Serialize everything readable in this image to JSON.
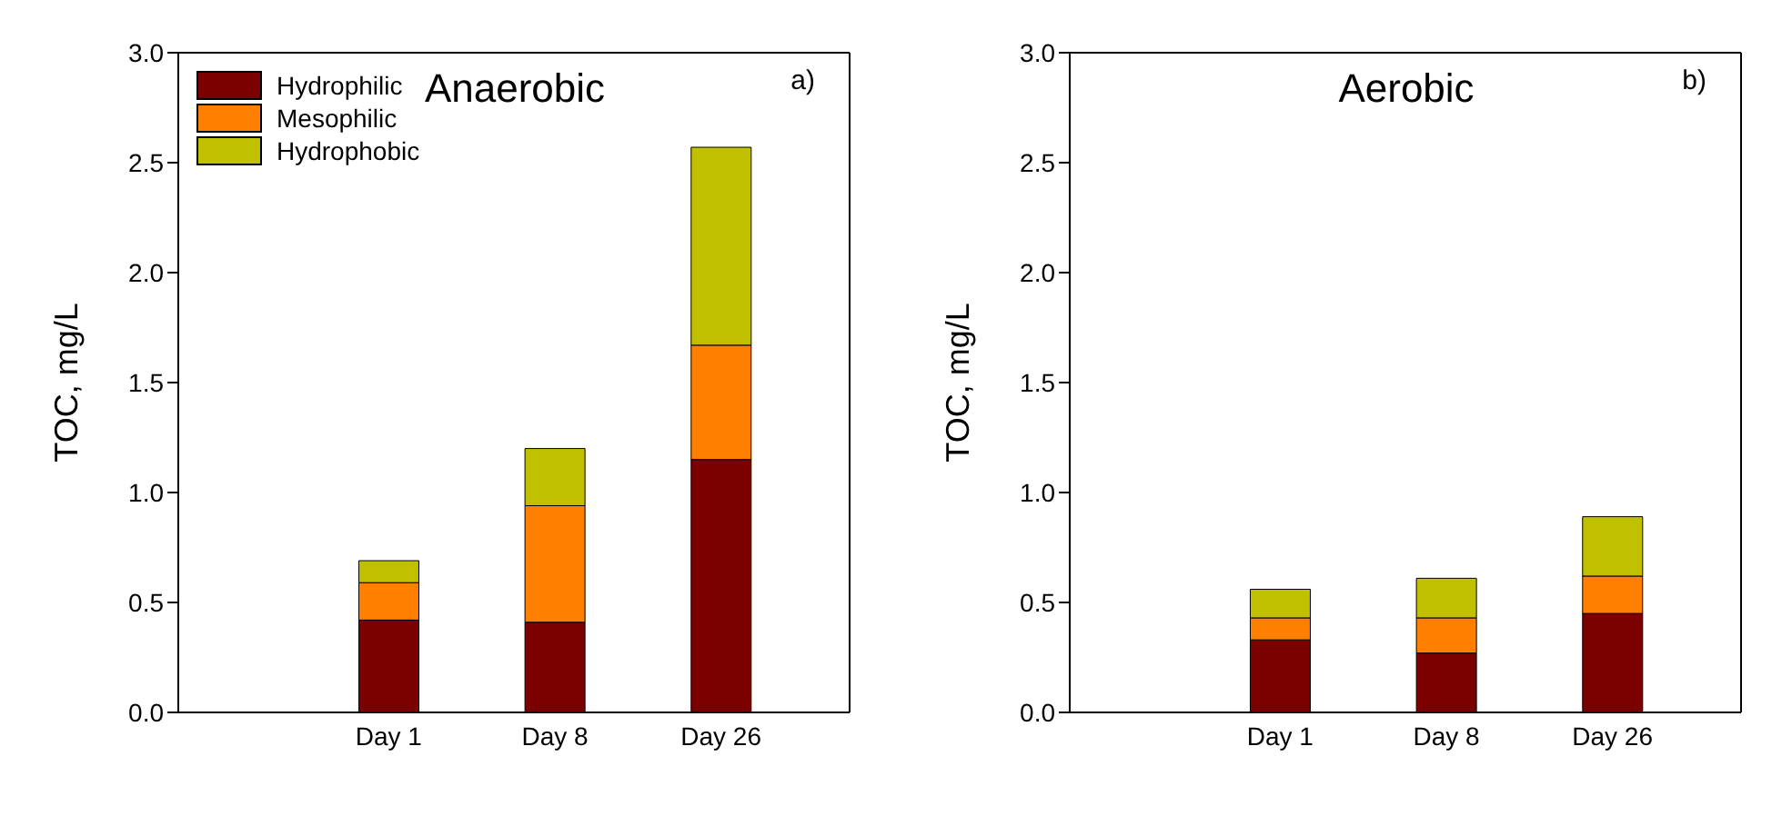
{
  "chart_data": [
    {
      "type": "bar",
      "title": "Anaerobic",
      "ylabel": "TOC, mg/L",
      "categories": [
        "Day 1",
        "Day 8",
        "Day 26"
      ],
      "stacked": true,
      "legend": "top left",
      "ylim": [
        0,
        3
      ],
      "yticks": [
        {
          "value": 0,
          "label": "0.0"
        },
        {
          "value": 0.5,
          "label": "0.5"
        },
        {
          "value": 1,
          "label": "1.0"
        },
        {
          "value": 1.5,
          "label": "1.5"
        },
        {
          "value": 2,
          "label": "2.0"
        },
        {
          "value": 2.5,
          "label": "2.5"
        },
        {
          "value": 3,
          "label": "3.0"
        }
      ],
      "annotations": [
        "a)"
      ],
      "series": [
        {
          "name": "Hydrophilic",
          "color": "#7b0000",
          "values": [
            0.42,
            0.41,
            1.15
          ]
        },
        {
          "name": "Mesophilic",
          "color": "#ff8000",
          "values": [
            0.17,
            0.53,
            0.52
          ]
        },
        {
          "name": "Hydrophobic",
          "color": "#c0c000",
          "values": [
            0.1,
            0.26,
            0.9
          ]
        }
      ]
    },
    {
      "type": "bar",
      "title": "Aerobic",
      "ylabel": "TOC, mg/L",
      "categories": [
        "Day 1",
        "Day 8",
        "Day 26"
      ],
      "stacked": true,
      "ylim": [
        0,
        3
      ],
      "yticks": [
        {
          "value": 0,
          "label": "0.0"
        },
        {
          "value": 0.5,
          "label": "0.5"
        },
        {
          "value": 1,
          "label": "1.0"
        },
        {
          "value": 1.5,
          "label": "1.5"
        },
        {
          "value": 2,
          "label": "2.0"
        },
        {
          "value": 2.5,
          "label": "2.5"
        },
        {
          "value": 3,
          "label": "3.0"
        }
      ],
      "annotations": [
        "b)"
      ],
      "series": [
        {
          "color": "#7b0000",
          "values": [
            0.33,
            0.27,
            0.45
          ]
        },
        {
          "color": "#ff8000",
          "values": [
            0.1,
            0.16,
            0.17
          ]
        },
        {
          "color": "#c0c000",
          "values": [
            0.13,
            0.18,
            0.27
          ]
        }
      ]
    }
  ]
}
